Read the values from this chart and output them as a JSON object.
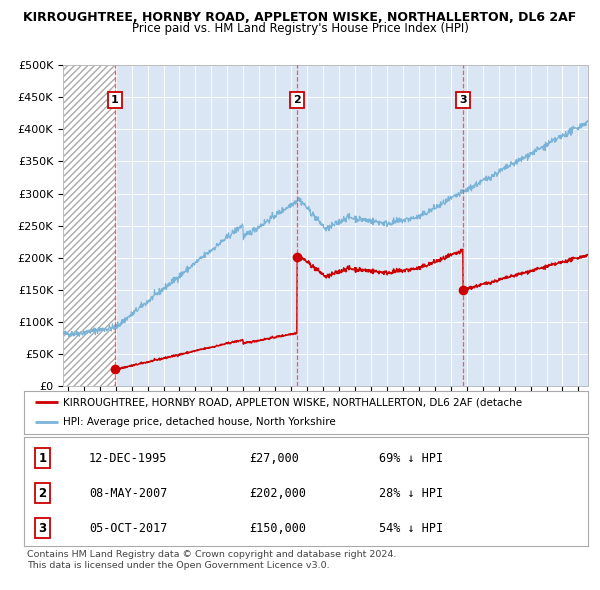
{
  "title": "KIRROUGHTREE, HORNBY ROAD, APPLETON WISKE, NORTHALLERTON, DL6 2AF",
  "subtitle": "Price paid vs. HM Land Registry's House Price Index (HPI)",
  "bg_color": "#dae6f3",
  "hatch_bg": "#c8d8ec",
  "hpi_color": "#7ab3d8",
  "price_color": "#cc0000",
  "dashed_line_color": "#ff5555",
  "transactions": [
    {
      "date_num": 1995.95,
      "price": 27000,
      "label": "1"
    },
    {
      "date_num": 2007.36,
      "price": 202000,
      "label": "2"
    },
    {
      "date_num": 2017.76,
      "price": 150000,
      "label": "3"
    }
  ],
  "transaction_labels": [
    {
      "label": "1",
      "date": "12-DEC-1995",
      "price": "£27,000",
      "pct": "69% ↓ HPI"
    },
    {
      "label": "2",
      "date": "08-MAY-2007",
      "price": "£202,000",
      "pct": "28% ↓ HPI"
    },
    {
      "label": "3",
      "date": "05-OCT-2017",
      "price": "£150,000",
      "pct": "54% ↓ HPI"
    }
  ],
  "legend_line1": "KIRROUGHTREE, HORNBY ROAD, APPLETON WISKE, NORTHALLERTON, DL6 2AF (detache",
  "legend_line2": "HPI: Average price, detached house, North Yorkshire",
  "footer_line1": "Contains HM Land Registry data © Crown copyright and database right 2024.",
  "footer_line2": "This data is licensed under the Open Government Licence v3.0.",
  "ylim": [
    0,
    500000
  ],
  "yticks": [
    0,
    50000,
    100000,
    150000,
    200000,
    250000,
    300000,
    350000,
    400000,
    450000,
    500000
  ],
  "xlim_start": 1992.7,
  "xlim_end": 2025.6
}
